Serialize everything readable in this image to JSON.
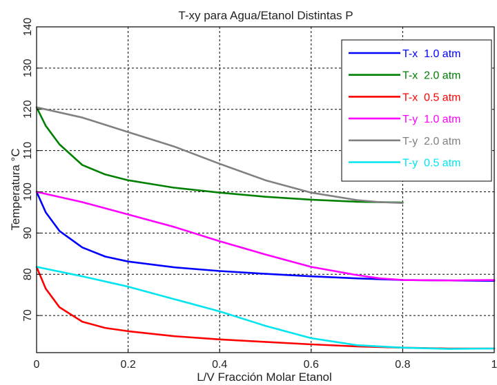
{
  "chart_data": {
    "type": "line",
    "title": "T-xy para Agua/Etanol Distintas P",
    "xlabel": "L/V Fracción Molar Etanol",
    "ylabel": "Temperatura °C",
    "xlim": [
      0,
      1
    ],
    "ylim": [
      61,
      140
    ],
    "xticks": [
      "0",
      "0.2",
      "0.4",
      "0.6",
      "0.8",
      "1"
    ],
    "yticks": [
      "70",
      "80",
      "90",
      "100",
      "110",
      "120",
      "130",
      "140"
    ],
    "grid": true,
    "legend_position": "top-right",
    "series": [
      {
        "name": "T-x  1.0 atm",
        "color": "#0000ff",
        "x": [
          0,
          0.02,
          0.05,
          0.1,
          0.15,
          0.2,
          0.3,
          0.4,
          0.5,
          0.6,
          0.7,
          0.8,
          0.9,
          1.0
        ],
        "y": [
          100,
          95,
          90.5,
          86.5,
          84.3,
          83.1,
          81.7,
          80.8,
          80.1,
          79.5,
          79.0,
          78.6,
          78.5,
          78.4
        ]
      },
      {
        "name": "T-x  2.0 atm",
        "color": "#008000",
        "x": [
          0,
          0.02,
          0.05,
          0.1,
          0.15,
          0.2,
          0.3,
          0.4,
          0.5,
          0.6,
          0.7,
          0.8
        ],
        "y": [
          120.5,
          116,
          111.5,
          106.5,
          104.2,
          102.8,
          101.0,
          99.8,
          98.8,
          98.1,
          97.6,
          97.4
        ]
      },
      {
        "name": "T-x  0.5 atm",
        "color": "#ff0000",
        "x": [
          0,
          0.02,
          0.05,
          0.1,
          0.15,
          0.2,
          0.3,
          0.4,
          0.5,
          0.6,
          0.7,
          0.8,
          0.9,
          1.0
        ],
        "y": [
          81.8,
          76.5,
          72,
          68.5,
          67,
          66.2,
          65.0,
          64.2,
          63.6,
          63.0,
          62.5,
          62.2,
          62.0,
          62.0
        ]
      },
      {
        "name": "T-y  1.0 atm",
        "color": "#ff00ff",
        "x": [
          0,
          0.1,
          0.2,
          0.3,
          0.4,
          0.5,
          0.6,
          0.7,
          0.75,
          0.8,
          0.9,
          1.0
        ],
        "y": [
          100,
          97.5,
          94.5,
          91.5,
          88,
          84.8,
          81.8,
          79.8,
          79.0,
          78.6,
          78.5,
          78.6
        ]
      },
      {
        "name": "T-y  2.0 atm",
        "color": "#808080",
        "x": [
          0,
          0.1,
          0.2,
          0.3,
          0.4,
          0.5,
          0.6,
          0.7,
          0.75,
          0.8
        ],
        "y": [
          120.5,
          118,
          114.5,
          111,
          106.8,
          102.8,
          99.8,
          98.0,
          97.5,
          97.3
        ]
      },
      {
        "name": "T-y  0.5 atm",
        "color": "#00e5ee",
        "x": [
          0,
          0.1,
          0.2,
          0.3,
          0.4,
          0.5,
          0.6,
          0.7,
          0.8,
          0.9,
          1.0
        ],
        "y": [
          81.8,
          79.5,
          77,
          74,
          71,
          67.5,
          64.5,
          62.8,
          62.2,
          61.9,
          62.0
        ]
      }
    ]
  }
}
